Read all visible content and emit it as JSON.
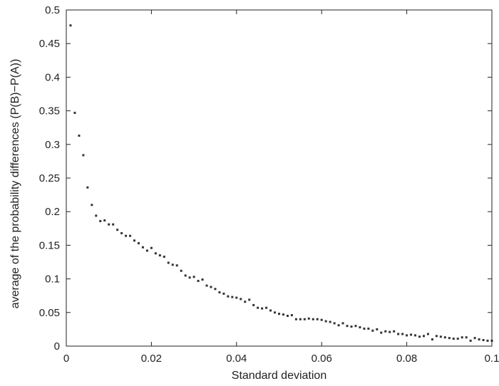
{
  "chart_data": {
    "type": "scatter",
    "xlabel": "Standard deviation",
    "ylabel": "average of the probability differences (P(B)−P(A))",
    "xlim": [
      0,
      0.1
    ],
    "ylim": [
      0,
      0.5
    ],
    "grid": false,
    "x_ticks": [
      "0",
      "0.02",
      "0.04",
      "0.06",
      "0.08",
      "0.1"
    ],
    "y_ticks": [
      "0",
      "0.05",
      "0.1",
      "0.15",
      "0.2",
      "0.25",
      "0.3",
      "0.35",
      "0.4",
      "0.45",
      "0.5"
    ],
    "marker_color": "#333333",
    "points": [
      [
        0.001,
        0.477
      ],
      [
        0.002,
        0.347
      ],
      [
        0.003,
        0.313
      ],
      [
        0.004,
        0.284
      ],
      [
        0.005,
        0.236
      ],
      [
        0.006,
        0.21
      ],
      [
        0.007,
        0.194
      ],
      [
        0.008,
        0.186
      ],
      [
        0.009,
        0.187
      ],
      [
        0.01,
        0.181
      ],
      [
        0.011,
        0.181
      ],
      [
        0.012,
        0.173
      ],
      [
        0.013,
        0.168
      ],
      [
        0.014,
        0.164
      ],
      [
        0.015,
        0.164
      ],
      [
        0.016,
        0.157
      ],
      [
        0.017,
        0.153
      ],
      [
        0.018,
        0.147
      ],
      [
        0.019,
        0.142
      ],
      [
        0.02,
        0.146
      ],
      [
        0.021,
        0.138
      ],
      [
        0.022,
        0.135
      ],
      [
        0.023,
        0.133
      ],
      [
        0.024,
        0.124
      ],
      [
        0.025,
        0.121
      ],
      [
        0.026,
        0.12
      ],
      [
        0.027,
        0.112
      ],
      [
        0.028,
        0.105
      ],
      [
        0.029,
        0.102
      ],
      [
        0.03,
        0.103
      ],
      [
        0.031,
        0.097
      ],
      [
        0.032,
        0.099
      ],
      [
        0.033,
        0.09
      ],
      [
        0.034,
        0.088
      ],
      [
        0.035,
        0.085
      ],
      [
        0.036,
        0.08
      ],
      [
        0.037,
        0.078
      ],
      [
        0.038,
        0.074
      ],
      [
        0.039,
        0.073
      ],
      [
        0.04,
        0.072
      ],
      [
        0.041,
        0.07
      ],
      [
        0.042,
        0.066
      ],
      [
        0.043,
        0.069
      ],
      [
        0.044,
        0.061
      ],
      [
        0.045,
        0.057
      ],
      [
        0.046,
        0.056
      ],
      [
        0.047,
        0.057
      ],
      [
        0.048,
        0.053
      ],
      [
        0.049,
        0.05
      ],
      [
        0.05,
        0.048
      ],
      [
        0.051,
        0.047
      ],
      [
        0.052,
        0.045
      ],
      [
        0.053,
        0.046
      ],
      [
        0.054,
        0.04
      ],
      [
        0.055,
        0.04
      ],
      [
        0.056,
        0.04
      ],
      [
        0.057,
        0.041
      ],
      [
        0.058,
        0.04
      ],
      [
        0.059,
        0.04
      ],
      [
        0.06,
        0.039
      ],
      [
        0.061,
        0.037
      ],
      [
        0.062,
        0.036
      ],
      [
        0.063,
        0.034
      ],
      [
        0.064,
        0.031
      ],
      [
        0.065,
        0.034
      ],
      [
        0.066,
        0.03
      ],
      [
        0.067,
        0.029
      ],
      [
        0.068,
        0.03
      ],
      [
        0.069,
        0.028
      ],
      [
        0.07,
        0.026
      ],
      [
        0.071,
        0.026
      ],
      [
        0.072,
        0.023
      ],
      [
        0.073,
        0.025
      ],
      [
        0.074,
        0.02
      ],
      [
        0.075,
        0.022
      ],
      [
        0.076,
        0.021
      ],
      [
        0.077,
        0.022
      ],
      [
        0.078,
        0.018
      ],
      [
        0.079,
        0.018
      ],
      [
        0.08,
        0.016
      ],
      [
        0.081,
        0.017
      ],
      [
        0.082,
        0.016
      ],
      [
        0.083,
        0.014
      ],
      [
        0.084,
        0.015
      ],
      [
        0.085,
        0.018
      ],
      [
        0.086,
        0.01
      ],
      [
        0.087,
        0.015
      ],
      [
        0.088,
        0.014
      ],
      [
        0.089,
        0.013
      ],
      [
        0.09,
        0.012
      ],
      [
        0.091,
        0.011
      ],
      [
        0.092,
        0.011
      ],
      [
        0.093,
        0.013
      ],
      [
        0.094,
        0.013
      ],
      [
        0.095,
        0.008
      ],
      [
        0.096,
        0.012
      ],
      [
        0.097,
        0.01
      ],
      [
        0.098,
        0.009
      ],
      [
        0.099,
        0.008
      ],
      [
        0.1,
        0.008
      ]
    ]
  }
}
